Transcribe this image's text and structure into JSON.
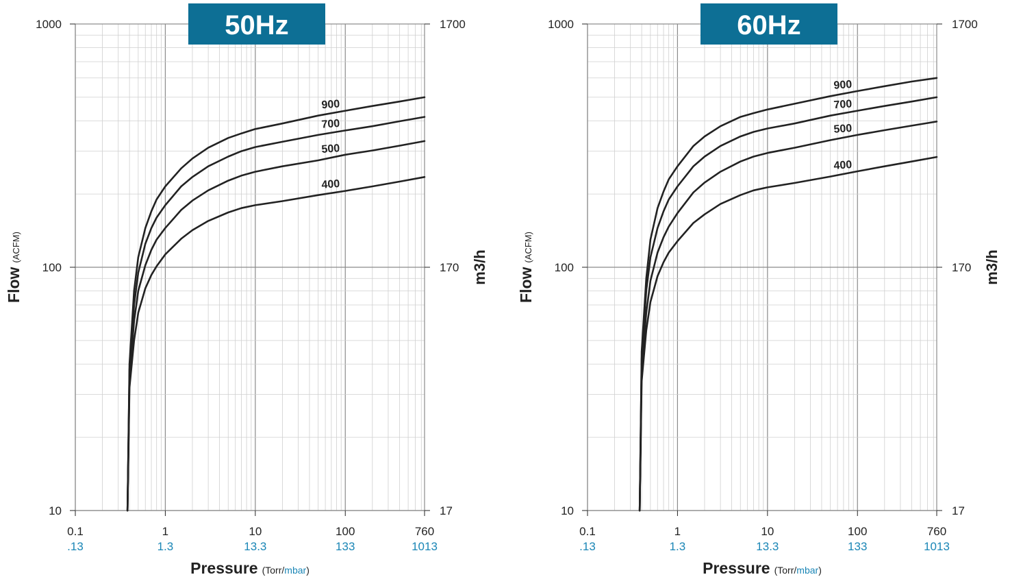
{
  "colors": {
    "banner": "#0d6f95",
    "banner_text": "#ffffff",
    "mbar_text": "#1a86b6",
    "curve": "#222222",
    "grid_minor": "#cfcfcf",
    "grid_major": "#8a8a8a",
    "text": "#222222"
  },
  "chart_data": [
    {
      "type": "line",
      "title": "50Hz",
      "xscale": "log",
      "yscale": "log",
      "xlim": [
        0.1,
        760
      ],
      "ylim": [
        10,
        1000
      ],
      "grid": true,
      "xlabel_main": "Pressure",
      "xlabel_units_torr": "(Torr/",
      "xlabel_units_mbar": "mbar",
      "xlabel_units_close": ")",
      "ylabel_main": "Flow",
      "ylabel_units": "(ACFM)",
      "y2label": "m3/h",
      "x_ticks_torr": [
        "0.1",
        "1",
        "10",
        "100",
        "760"
      ],
      "x_ticks_mbar": [
        ".13",
        "1.3",
        "13.3",
        "133",
        "1013"
      ],
      "y_ticks_left": [
        "10",
        "100",
        "1000"
      ],
      "y_ticks_right": [
        "17",
        "170",
        "1700"
      ],
      "series": [
        {
          "name": "900",
          "x": [
            0.38,
            0.4,
            0.45,
            0.5,
            0.6,
            0.7,
            0.8,
            1,
            1.5,
            2,
            3,
            5,
            7,
            10,
            20,
            50,
            100,
            200,
            400,
            760
          ],
          "y": [
            10,
            40,
            80,
            110,
            145,
            170,
            190,
            215,
            255,
            280,
            310,
            340,
            355,
            370,
            390,
            420,
            440,
            460,
            480,
            500
          ]
        },
        {
          "name": "700",
          "x": [
            0.38,
            0.4,
            0.45,
            0.5,
            0.6,
            0.7,
            0.8,
            1,
            1.5,
            2,
            3,
            5,
            7,
            10,
            20,
            50,
            100,
            200,
            400,
            760
          ],
          "y": [
            10,
            38,
            70,
            95,
            125,
            145,
            160,
            180,
            215,
            235,
            260,
            285,
            300,
            312,
            328,
            350,
            365,
            380,
            398,
            415
          ]
        },
        {
          "name": "500",
          "x": [
            0.38,
            0.4,
            0.45,
            0.5,
            0.6,
            0.7,
            0.8,
            1,
            1.5,
            2,
            3,
            5,
            7,
            10,
            20,
            50,
            100,
            200,
            400,
            760
          ],
          "y": [
            10,
            35,
            60,
            80,
            102,
            118,
            130,
            145,
            172,
            188,
            207,
            227,
            238,
            247,
            260,
            275,
            290,
            302,
            316,
            330
          ]
        },
        {
          "name": "400",
          "x": [
            0.38,
            0.4,
            0.45,
            0.5,
            0.6,
            0.7,
            0.8,
            1,
            1.5,
            2,
            3,
            5,
            7,
            10,
            20,
            50,
            100,
            200,
            400,
            760
          ],
          "y": [
            10,
            32,
            50,
            65,
            82,
            93,
            101,
            113,
            131,
            142,
            155,
            168,
            175,
            180,
            187,
            198,
            206,
            215,
            225,
            235
          ]
        }
      ]
    },
    {
      "type": "line",
      "title": "60Hz",
      "xscale": "log",
      "yscale": "log",
      "xlim": [
        0.1,
        760
      ],
      "ylim": [
        10,
        1000
      ],
      "grid": true,
      "xlabel_main": "Pressure",
      "xlabel_units_torr": "(Torr/",
      "xlabel_units_mbar": "mbar",
      "xlabel_units_close": ")",
      "ylabel_main": "Flow",
      "ylabel_units": "(ACFM)",
      "y2label": "m3/h",
      "x_ticks_torr": [
        "0.1",
        "1",
        "10",
        "100",
        "760"
      ],
      "x_ticks_mbar": [
        ".13",
        "1.3",
        "13.3",
        "133",
        "1013"
      ],
      "y_ticks_left": [
        "10",
        "100",
        "1000"
      ],
      "y_ticks_right": [
        "17",
        "170",
        "1700"
      ],
      "series": [
        {
          "name": "900",
          "x": [
            0.38,
            0.4,
            0.45,
            0.5,
            0.6,
            0.7,
            0.8,
            1,
            1.5,
            2,
            3,
            5,
            7,
            10,
            20,
            50,
            100,
            200,
            400,
            760
          ],
          "y": [
            10,
            45,
            90,
            130,
            175,
            205,
            230,
            260,
            315,
            345,
            380,
            415,
            430,
            445,
            470,
            505,
            530,
            555,
            580,
            600
          ]
        },
        {
          "name": "700",
          "x": [
            0.38,
            0.4,
            0.45,
            0.5,
            0.6,
            0.7,
            0.8,
            1,
            1.5,
            2,
            3,
            5,
            7,
            10,
            20,
            50,
            100,
            200,
            400,
            760
          ],
          "y": [
            10,
            42,
            80,
            110,
            145,
            170,
            190,
            215,
            260,
            285,
            315,
            345,
            360,
            372,
            390,
            420,
            440,
            460,
            480,
            500
          ]
        },
        {
          "name": "500",
          "x": [
            0.38,
            0.4,
            0.45,
            0.5,
            0.6,
            0.7,
            0.8,
            1,
            1.5,
            2,
            3,
            5,
            7,
            10,
            20,
            50,
            100,
            200,
            400,
            760
          ],
          "y": [
            10,
            38,
            65,
            88,
            115,
            133,
            147,
            167,
            203,
            223,
            247,
            272,
            285,
            295,
            310,
            333,
            350,
            366,
            382,
            397
          ]
        },
        {
          "name": "400",
          "x": [
            0.38,
            0.4,
            0.45,
            0.5,
            0.6,
            0.7,
            0.8,
            1,
            1.5,
            2,
            3,
            5,
            7,
            10,
            20,
            50,
            100,
            200,
            400,
            760
          ],
          "y": [
            10,
            34,
            55,
            72,
            92,
            105,
            115,
            128,
            152,
            165,
            182,
            198,
            207,
            213,
            222,
            236,
            248,
            260,
            272,
            284
          ]
        }
      ]
    }
  ]
}
